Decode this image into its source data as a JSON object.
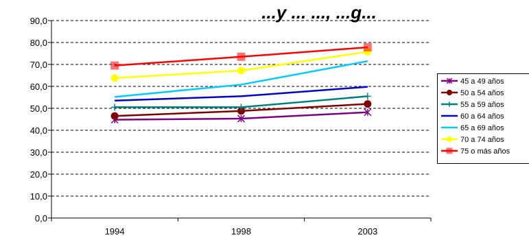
{
  "chart_data": {
    "type": "line",
    "title": "...y ... ..., ...g...",
    "xlabel": "",
    "ylabel": "",
    "categories": [
      "1994",
      "1998",
      "2003"
    ],
    "ylim": [
      0,
      90
    ],
    "yticks": [
      "0,0",
      "10,0",
      "20,0",
      "30,0",
      "40,0",
      "50,0",
      "60,0",
      "70,0",
      "80,0",
      "90,0"
    ],
    "grid": true,
    "legend_position": "right",
    "series": [
      {
        "name": "45 a 49 años",
        "values": [
          44.8,
          45.3,
          48.2
        ],
        "color": "#800080",
        "marker": "star"
      },
      {
        "name": "50 a 54 años",
        "values": [
          46.5,
          48.8,
          52.0
        ],
        "color": "#800000",
        "marker": "circle"
      },
      {
        "name": "55 a 59 años",
        "values": [
          50.5,
          50.5,
          55.5
        ],
        "color": "#008080",
        "marker": "plus"
      },
      {
        "name": "60 a 64 años",
        "values": [
          53.5,
          55.5,
          59.8
        ],
        "color": "#0000CC",
        "marker": "none"
      },
      {
        "name": "65 a 69 años",
        "values": [
          55.2,
          60.8,
          71.5
        ],
        "color": "#00CCFF",
        "marker": "none"
      },
      {
        "name": "70 a 74 años",
        "values": [
          63.8,
          67.2,
          75.8
        ],
        "color": "#FFFF00",
        "marker": "circle"
      },
      {
        "name": "75 o más años",
        "values": [
          69.5,
          73.5,
          77.8
        ],
        "color": "#FF0000",
        "marker": "square"
      }
    ]
  }
}
